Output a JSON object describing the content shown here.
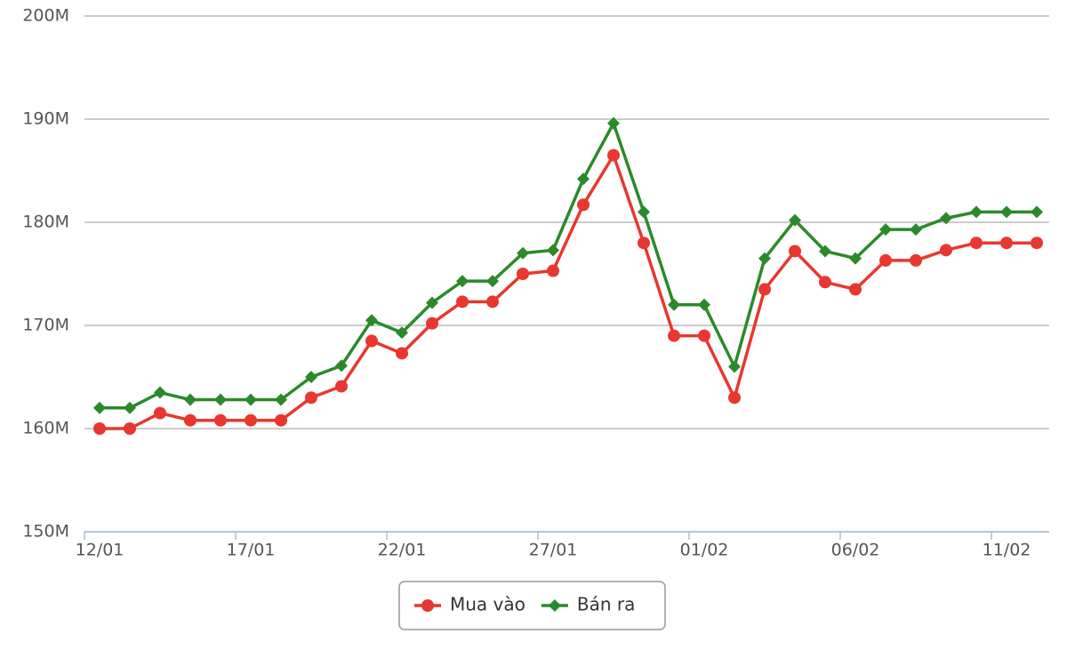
{
  "chart_data": {
    "type": "line",
    "categories": [
      "12/01",
      null,
      null,
      null,
      null,
      "17/01",
      null,
      null,
      null,
      null,
      "22/01",
      null,
      null,
      null,
      null,
      "27/01",
      null,
      null,
      null,
      null,
      "01/02",
      null,
      null,
      null,
      null,
      "06/02",
      null,
      null,
      null,
      null,
      "11/02",
      null
    ],
    "series": [
      {
        "name": "Mua vào",
        "color": "#e8372e",
        "marker": "circle",
        "values": [
          160,
          160,
          161.5,
          160.8,
          160.8,
          160.8,
          160.8,
          163,
          164.1,
          168.5,
          167.3,
          170.2,
          172.3,
          172.3,
          175,
          175.3,
          181.7,
          186.5,
          178,
          169,
          169,
          163,
          173.5,
          177.2,
          174.2,
          173.5,
          176.3,
          176.3,
          177.3,
          178,
          178,
          178
        ]
      },
      {
        "name": "Bán ra",
        "color": "#2a8a2a",
        "marker": "diamond",
        "values": [
          162,
          162,
          163.5,
          162.8,
          162.8,
          162.8,
          162.8,
          165,
          166.1,
          170.5,
          169.3,
          172.2,
          174.3,
          174.3,
          177,
          177.3,
          184.2,
          189.6,
          181,
          172,
          172,
          166,
          176.5,
          180.2,
          177.2,
          176.5,
          179.3,
          179.3,
          180.4,
          181,
          181,
          181
        ]
      }
    ],
    "ylim": [
      150,
      200
    ],
    "yticks": [
      {
        "value": 150,
        "label": "150M"
      },
      {
        "value": 160,
        "label": "160M"
      },
      {
        "value": 170,
        "label": "170M"
      },
      {
        "value": 180,
        "label": "180M"
      },
      {
        "value": 190,
        "label": "190M"
      },
      {
        "value": 200,
        "label": "200M"
      }
    ],
    "grid": true,
    "legend": "bottom"
  }
}
